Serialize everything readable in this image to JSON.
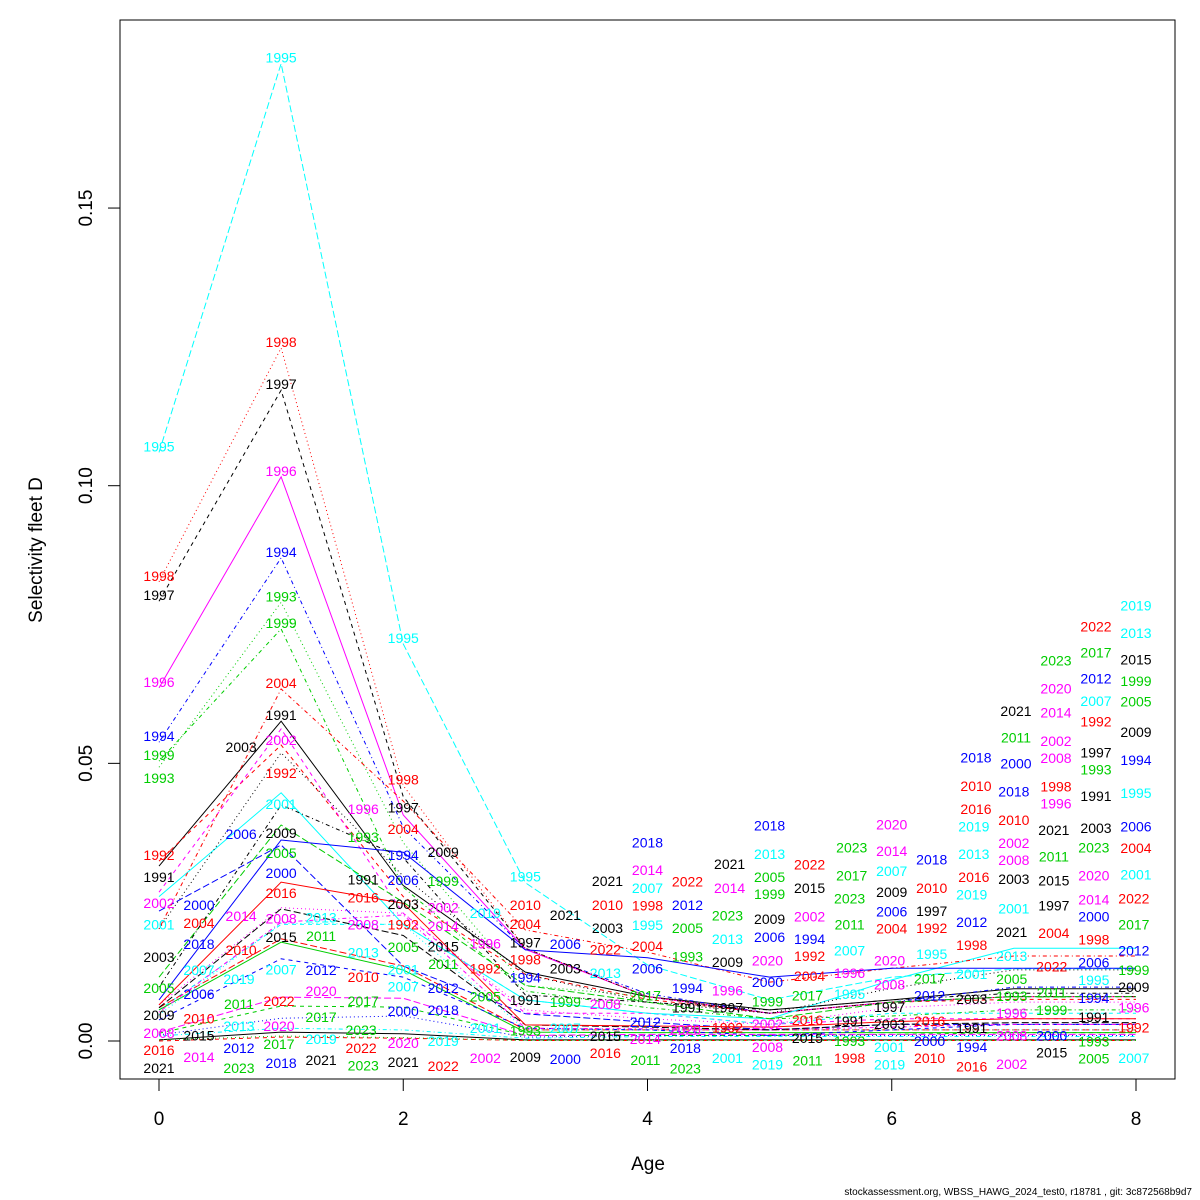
{
  "chart_data": {
    "type": "line",
    "title": "",
    "xlabel": "Age",
    "ylabel": "Selectivity fleet D",
    "xlim": [
      -0.32,
      8.32
    ],
    "ylim": [
      -0.0069,
      0.1838
    ],
    "x": [
      0,
      1,
      2,
      3,
      4,
      5,
      6,
      7,
      8
    ],
    "x_ticks": [
      "0",
      "2",
      "4",
      "6",
      "8"
    ],
    "y_ticks": [
      "0.00",
      "0.05",
      "0.10",
      "0.15"
    ],
    "grid": false,
    "point_labels": "year at each point",
    "series": [
      {
        "name": "1991",
        "color": "#000000",
        "lty": 1,
        "values": [
          0.0315,
          0.0576,
          0.028,
          0.0124,
          0.008,
          0.0056,
          0.0074,
          0.0094,
          0.0094
        ]
      },
      {
        "name": "1992",
        "color": "#FF0000",
        "lty": 2,
        "values": [
          0.0324,
          0.0533,
          0.026,
          0.012,
          0.0075,
          0.005,
          0.007,
          0.0075,
          0.0075
        ]
      },
      {
        "name": "1993",
        "color": "#00CD00",
        "lty": 3,
        "values": [
          0.0493,
          0.079,
          0.0357,
          0.01,
          0.008,
          0.005,
          0.007,
          0.008,
          0.008
        ]
      },
      {
        "name": "1994",
        "color": "#0000FF",
        "lty": 4,
        "values": [
          0.0538,
          0.087,
          0.0385,
          0.0165,
          0.0085,
          0.005,
          0.007,
          0.0097,
          0.0097
        ]
      },
      {
        "name": "1995",
        "color": "#00FFFF",
        "lty": 5,
        "values": [
          0.106,
          0.176,
          0.0715,
          0.0285,
          0.0137,
          0.0074,
          0.0115,
          0.013,
          0.013
        ]
      },
      {
        "name": "1996",
        "color": "#FF00FF",
        "lty": 1,
        "values": [
          0.0636,
          0.1016,
          0.0407,
          0.0165,
          0.008,
          0.005,
          0.007,
          0.008,
          0.008
        ]
      },
      {
        "name": "1997",
        "color": "#000000",
        "lty": 2,
        "values": [
          0.0792,
          0.1172,
          0.044,
          0.0167,
          0.008,
          0.005,
          0.007,
          0.008,
          0.008
        ]
      },
      {
        "name": "1998",
        "color": "#FF0000",
        "lty": 3,
        "values": [
          0.0827,
          0.1248,
          0.046,
          0.0167,
          0.008,
          0.005,
          0.007,
          0.008,
          0.008
        ]
      },
      {
        "name": "1999",
        "color": "#00CD00",
        "lty": 4,
        "values": [
          0.0504,
          0.0742,
          0.0277,
          0.009,
          0.006,
          0.004,
          0.0045,
          0.0056,
          0.0056
        ]
      },
      {
        "name": "2000",
        "color": "#0000FF",
        "lty": 5,
        "values": [
          0.0234,
          0.0353,
          0.0135,
          0.0049,
          0.0034,
          0.002,
          0.003,
          0.003,
          0.003
        ]
      },
      {
        "name": "2001",
        "color": "#00FFFF",
        "lty": 1,
        "values": [
          0.026,
          0.0447,
          0.021,
          0.0074,
          0.005,
          0.004,
          0.011,
          0.0167,
          0.0167
        ]
      },
      {
        "name": "2002",
        "color": "#FF00FF",
        "lty": 2,
        "values": [
          0.0268,
          0.0562,
          0.023,
          0.005,
          0.005,
          0.003,
          0.004,
          0.004,
          0.004
        ]
      },
      {
        "name": "2003",
        "color": "#000000",
        "lty": 3,
        "values": [
          0.0202,
          0.0519,
          0.0297,
          0.012,
          0.007,
          0.005,
          0.0095,
          0.0128,
          0.0128
        ]
      },
      {
        "name": "2004",
        "color": "#FF0000",
        "lty": 4,
        "values": [
          0.0202,
          0.0634,
          0.0432,
          0.02,
          0.016,
          0.0106,
          0.0131,
          0.0153,
          0.0153
        ]
      },
      {
        "name": "2005",
        "color": "#00CD00",
        "lty": 5,
        "values": [
          0.0115,
          0.0389,
          0.025,
          0.01,
          0.007,
          0.004,
          0.007,
          0.008,
          0.008
        ]
      },
      {
        "name": "2006",
        "color": "#0000FF",
        "lty": 1,
        "values": [
          0.0074,
          0.0362,
          0.034,
          0.0164,
          0.015,
          0.0115,
          0.0131,
          0.0131,
          0.0131
        ]
      },
      {
        "name": "2007",
        "color": "#00FFFF",
        "lty": 2,
        "values": [
          0.0056,
          0.021,
          0.021,
          0.0074,
          0.005,
          0.003,
          0.005,
          0.005,
          0.005
        ]
      },
      {
        "name": "2008",
        "color": "#FF00FF",
        "lty": 3,
        "values": [
          0.0065,
          0.024,
          0.023,
          0.0056,
          0.004,
          0.003,
          0.006,
          0.007,
          0.007
        ]
      },
      {
        "name": "2009",
        "color": "#000000",
        "lty": 4,
        "values": [
          0.0097,
          0.0425,
          0.033,
          0.0083,
          0.007,
          0.0056,
          0.0074,
          0.0086,
          0.0086
        ]
      },
      {
        "name": "2010",
        "color": "#FF0000",
        "lty": 5,
        "values": [
          0.006,
          0.0184,
          0.0135,
          0.002,
          0.002,
          0.002,
          0.002,
          0.002,
          0.002
        ]
      },
      {
        "name": "2011",
        "color": "#00CD00",
        "lty": 1,
        "values": [
          0.0056,
          0.0178,
          0.0128,
          0.0016,
          0.0015,
          0.0015,
          0.0015,
          0.0015,
          0.0015
        ]
      },
      {
        "name": "2012",
        "color": "#0000FF",
        "lty": 2,
        "values": [
          0.0038,
          0.0148,
          0.0115,
          0.0023,
          0.002,
          0.001,
          0.002,
          0.003,
          0.003
        ]
      },
      {
        "name": "2013",
        "color": "#00FFFF",
        "lty": 3,
        "values": [
          0.0047,
          0.0212,
          0.021,
          0.002,
          0.002,
          0.002,
          0.002,
          0.002,
          0.002
        ]
      },
      {
        "name": "2014",
        "color": "#FF00FF",
        "lty": 4,
        "values": [
          0.0052,
          0.0214,
          0.0227,
          0.0023,
          0.0022,
          0.002,
          0.0025,
          0.003,
          0.003
        ]
      },
      {
        "name": "2015",
        "color": "#000000",
        "lty": 5,
        "values": [
          0.006,
          0.0238,
          0.019,
          0.0029,
          0.0025,
          0.002,
          0.003,
          0.0033,
          0.0033
        ]
      },
      {
        "name": "2016",
        "color": "#FF0000",
        "lty": 1,
        "values": [
          0.0065,
          0.0286,
          0.0248,
          0.0029,
          0.0027,
          0.0025,
          0.0035,
          0.004,
          0.004
        ]
      },
      {
        "name": "2017",
        "color": "#00CD00",
        "lty": 2,
        "values": [
          0.0014,
          0.0063,
          0.0061,
          0.001,
          0.001,
          0.001,
          0.0012,
          0.0015,
          0.0015
        ]
      },
      {
        "name": "2018",
        "color": "#0000FF",
        "lty": 3,
        "values": [
          0.0011,
          0.0041,
          0.0045,
          0.0007,
          0.001,
          0.001,
          0.001,
          0.001,
          0.001
        ]
      },
      {
        "name": "2019",
        "color": "#00FFFF",
        "lty": 4,
        "values": [
          0.0009,
          0.0023,
          0.002,
          0.0005,
          0.0008,
          0.0008,
          0.0008,
          0.0008,
          0.0008
        ]
      },
      {
        "name": "2020",
        "color": "#FF00FF",
        "lty": 5,
        "values": [
          0.0016,
          0.0079,
          0.0077,
          0.001,
          0.0012,
          0.0012,
          0.0012,
          0.0012,
          0.0012
        ]
      },
      {
        "name": "2021",
        "color": "#000000",
        "lty": 1,
        "values": [
          0.0002,
          0.0016,
          0.0013,
          0.0002,
          0.0002,
          0.0002,
          0.0002,
          0.0002,
          0.0002
        ]
      },
      {
        "name": "2022",
        "color": "#FF0000",
        "lty": 2,
        "values": [
          0.0,
          0.0007,
          0.0005,
          0.0001,
          0.0001,
          0.0001,
          0.0001,
          0.0001,
          0.0001
        ]
      },
      {
        "name": "2023",
        "color": "#00CD00",
        "lty": 3,
        "values": [
          0.0002,
          0.0009,
          0.0006,
          0.0001,
          0.0001,
          0.0001,
          0.0001,
          0.0001,
          0.0001
        ]
      }
    ]
  },
  "footer": "stockassessment.org, WBSS_HAWG_2024_test0, r18781 , git: 3c872568b9d7"
}
